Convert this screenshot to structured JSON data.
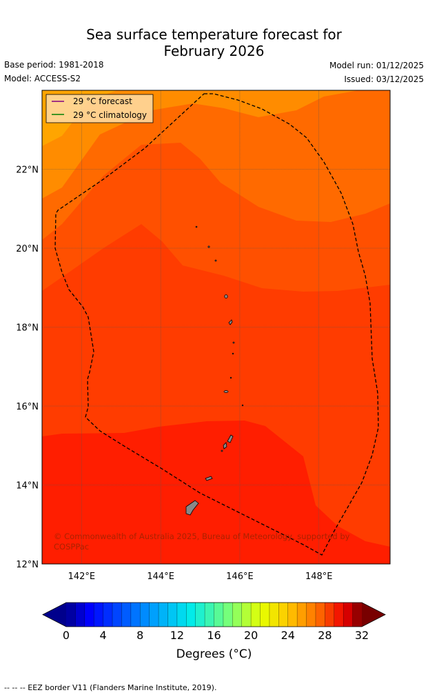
{
  "title_line1": "Sea surface temperature forecast for",
  "title_line2": "February 2026",
  "base_period": "Base period: 1981-2018",
  "model": "Model: ACCESS-S2",
  "model_run": "Model run: 01/12/2025",
  "issued": "Issued: 03/12/2025",
  "legend": {
    "forecast_label": "29 °C  forecast",
    "forecast_color": "#800080",
    "climatology_label": "29 °C  climatology",
    "climatology_color": "#008000"
  },
  "map": {
    "lon_range": [
      141.0,
      149.8
    ],
    "lat_range": [
      12.0,
      24.0
    ],
    "lat_ticks": [
      {
        "value": 22,
        "label": "22°N"
      },
      {
        "value": 20,
        "label": "20°N"
      },
      {
        "value": 18,
        "label": "18°N"
      },
      {
        "value": 16,
        "label": "16°N"
      },
      {
        "value": 14,
        "label": "14°N"
      },
      {
        "value": 12,
        "label": "12°N"
      }
    ],
    "lon_ticks": [
      {
        "value": 142,
        "label": "142°E"
      },
      {
        "value": 144,
        "label": "144°E"
      },
      {
        "value": 146,
        "label": "146°E"
      },
      {
        "value": 148,
        "label": "148°E"
      }
    ],
    "sst_bands": [
      {
        "name": "band-26-27",
        "color": "#ffa500"
      },
      {
        "name": "band-27-28",
        "color": "#ff8c00"
      },
      {
        "name": "band-28-28.5",
        "color": "#ff6a00"
      },
      {
        "name": "band-28.5-29",
        "color": "#ff5000"
      },
      {
        "name": "band-29-29.5",
        "color": "#ff3c00"
      },
      {
        "name": "band-29.5-30",
        "color": "#ff1e00"
      }
    ],
    "copyright": "© Commonwealth of Australia 2025, Bureau of Meteorology, supported by COSPPac"
  },
  "colorbar": {
    "label": "Degrees (°C)",
    "tick_labels": [
      "0",
      "4",
      "8",
      "12",
      "16",
      "20",
      "24",
      "28",
      "32"
    ],
    "min": 0,
    "max": 32,
    "steps": 32
  },
  "footnote": "--  --  -- EEZ border V11 (Flanders Marine Institute, 2019)."
}
